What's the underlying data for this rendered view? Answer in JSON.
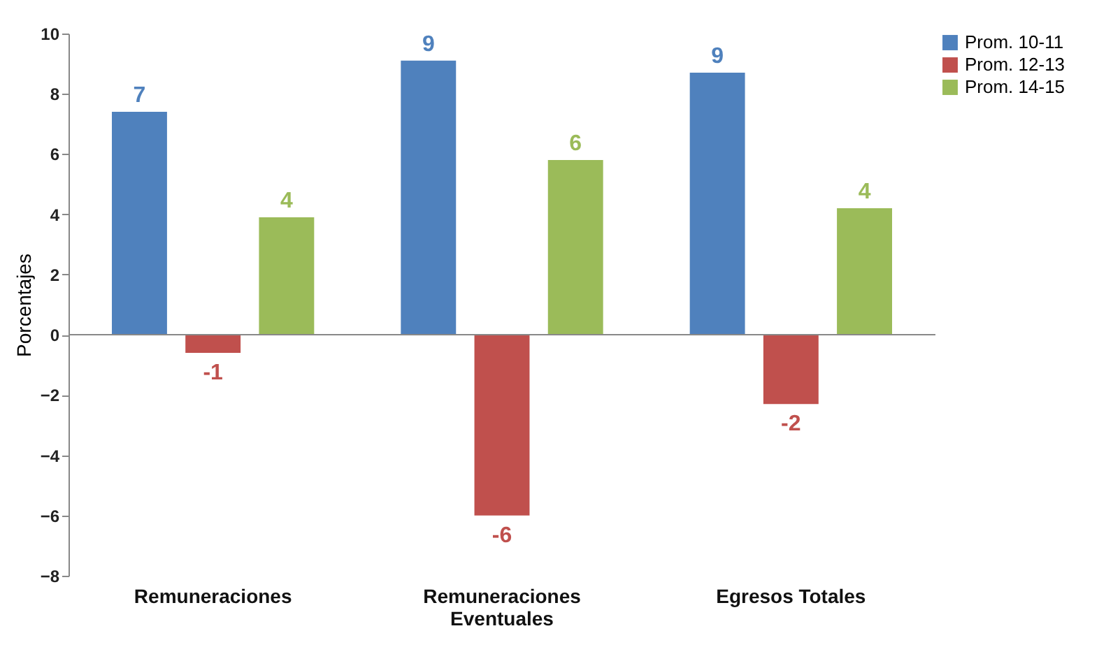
{
  "chart_data": {
    "type": "bar",
    "ylabel": "Porcentajes",
    "categories": [
      "Remuneraciones",
      "Remuneraciones Eventuales",
      "Egresos Totales"
    ],
    "series": [
      {
        "name": "Prom. 10-11",
        "color": "#4f81bd",
        "values": [
          7.4,
          9.1,
          8.7
        ],
        "value_labels": [
          "7",
          "9",
          "9"
        ]
      },
      {
        "name": "Prom. 12-13",
        "color": "#c0504d",
        "values": [
          -0.6,
          -6.0,
          -2.3
        ],
        "value_labels": [
          "-1",
          "-6",
          "-2"
        ]
      },
      {
        "name": "Prom. 14-15",
        "color": "#9bbb59",
        "values": [
          3.9,
          5.8,
          4.2
        ],
        "value_labels": [
          "4",
          "6",
          "4"
        ]
      }
    ],
    "ylim": [
      -8,
      10
    ],
    "yticks": [
      -8,
      -6,
      -4,
      -2,
      0,
      2,
      4,
      6,
      8,
      10
    ],
    "legend": "top right"
  }
}
